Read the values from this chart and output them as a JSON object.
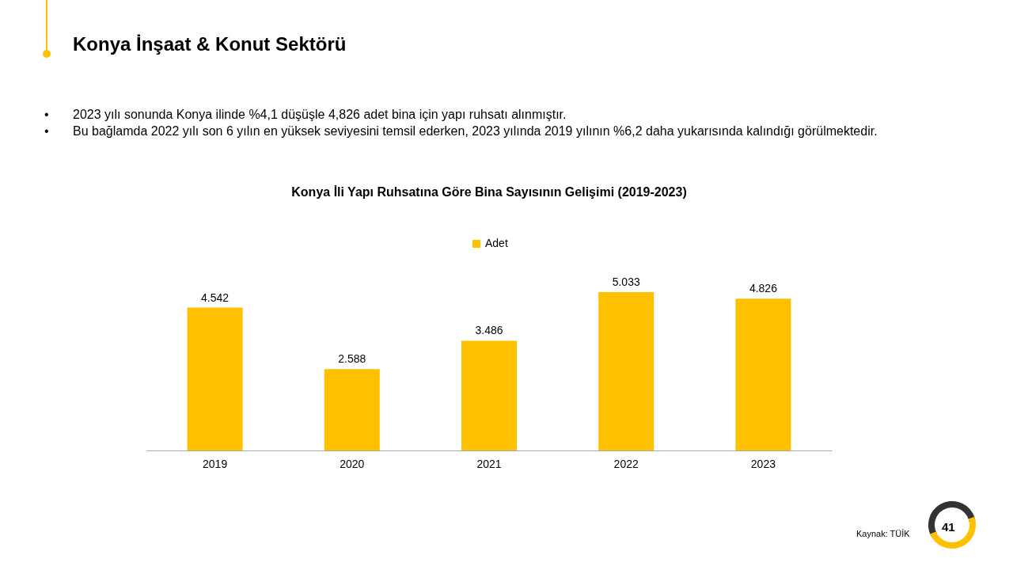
{
  "chart_data": {
    "type": "bar",
    "title": "Konya İli Yapı Ruhsatına Göre Bina Sayısının Gelişimi (2019-2023)",
    "categories": [
      "2019",
      "2020",
      "2021",
      "2022",
      "2023"
    ],
    "series": [
      {
        "name": "Adet",
        "color": "#ffc000",
        "values": [
          4542,
          2588,
          3486,
          5033,
          4826
        ],
        "value_labels": [
          "4.542",
          "2.588",
          "3.486",
          "5.033",
          "4.826"
        ]
      }
    ],
    "legend": "top",
    "grid": false,
    "annotations": [
      "Konya İnşaat & Konut Sektörü",
      "• 2023 yılı sonunda Konya ilinde %4,1 düşüşle 4,826 adet bina için yapı ruhsatı alınmıştır.",
      "• Bu bağlamda 2022 yılı son 6 yılın en yüksek seviyesini temsil ederken, 2023 yılında 2019 yılının %6,2 daha yukarısında kalındığı görülmektedir.",
      "Kaynak: TÜİK",
      "41"
    ]
  }
}
